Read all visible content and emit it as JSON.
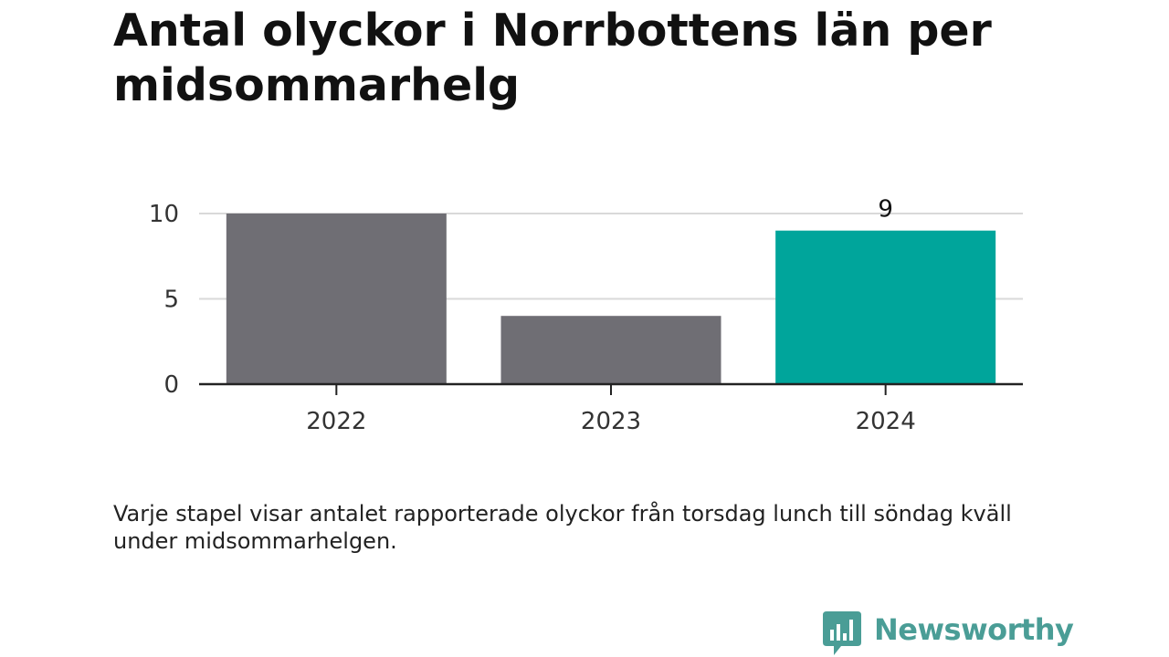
{
  "chart_data": {
    "type": "bar",
    "title": "Antal olyckor i Norrbottens län per midsommarhelg",
    "categories": [
      "2022",
      "2023",
      "2024"
    ],
    "values": [
      10,
      4,
      9
    ],
    "highlight_index": 2,
    "data_labels": [
      {
        "index": 2,
        "text": "9"
      }
    ],
    "yticks": [
      "0",
      "5",
      "10"
    ],
    "ytick_values": [
      0,
      5,
      10
    ],
    "ylim": [
      0,
      10
    ],
    "xlabel": "",
    "ylabel": "",
    "grid": true,
    "legend": "none",
    "caption": "Varje stapel visar antalet rapporterade olyckor från torsdag lunch till söndag kväll under midsommarhelgen.",
    "colors": {
      "bar_default": "#6f6e74",
      "bar_highlight": "#00a59b",
      "grid": "#d9d9d9",
      "axis": "#222222",
      "tick_text": "#333333"
    }
  },
  "brand": {
    "name": "Newsworthy",
    "icon": "newsworthy-logo-icon",
    "color": "#4a9d96"
  }
}
